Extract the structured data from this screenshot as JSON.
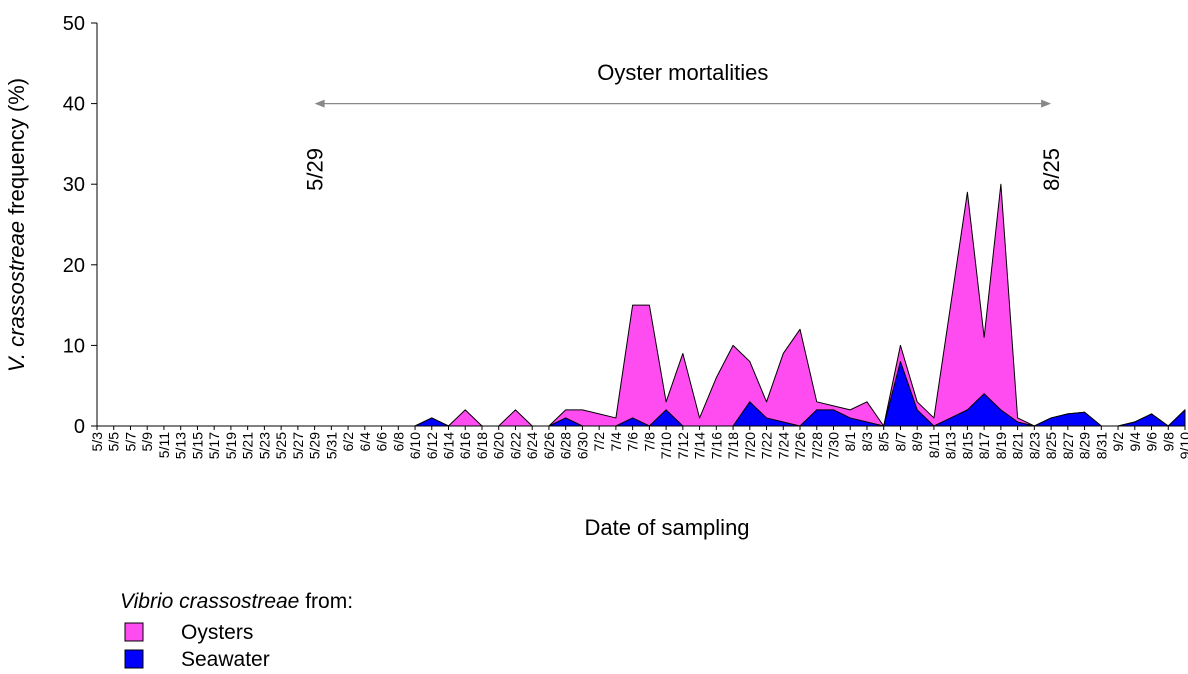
{
  "chart_data": {
    "type": "area",
    "y_label": {
      "italic": "V. crassostreae",
      "text": " frequency (%)"
    },
    "x_label": "Date of sampling",
    "categories": [
      "5/3",
      "5/5",
      "5/7",
      "5/9",
      "5/11",
      "5/13",
      "5/15",
      "5/17",
      "5/19",
      "5/21",
      "5/23",
      "5/25",
      "5/27",
      "5/29",
      "5/31",
      "6/2",
      "6/4",
      "6/6",
      "6/8",
      "6/10",
      "6/12",
      "6/14",
      "6/16",
      "6/18",
      "6/20",
      "6/22",
      "6/24",
      "6/26",
      "6/28",
      "6/30",
      "7/2",
      "7/4",
      "7/6",
      "7/8",
      "7/10",
      "7/12",
      "7/14",
      "7/16",
      "7/18",
      "7/20",
      "7/22",
      "7/24",
      "7/26",
      "7/28",
      "7/30",
      "8/1",
      "8/3",
      "8/5",
      "8/7",
      "8/9",
      "8/11",
      "8/13",
      "8/15",
      "8/17",
      "8/19",
      "8/21",
      "8/23",
      "8/25",
      "8/27",
      "8/29",
      "8/31",
      "9/2",
      "9/4",
      "9/6",
      "9/8",
      "9/10"
    ],
    "series": [
      {
        "name": "Oysters",
        "color": "#ff4cf0",
        "values": [
          0,
          0,
          0,
          0,
          0,
          0,
          0,
          0,
          0,
          0,
          0,
          0,
          0,
          0,
          0,
          0,
          0,
          0,
          0,
          0,
          1,
          0,
          2,
          0,
          0,
          2,
          0,
          0,
          2,
          2,
          1.5,
          1,
          15,
          15,
          3,
          9,
          1,
          6,
          10,
          8,
          3,
          9,
          12,
          3,
          2.5,
          2,
          3,
          0,
          10,
          3,
          1,
          15,
          29,
          11,
          30,
          1,
          0,
          1,
          1.5,
          1.7,
          0,
          0,
          0.5,
          1.5,
          0,
          2
        ]
      },
      {
        "name": "Seawater",
        "color": "#0000ff",
        "values": [
          0,
          0,
          0,
          0,
          0,
          0,
          0,
          0,
          0,
          0,
          0,
          0,
          0,
          0,
          0,
          0,
          0,
          0,
          0,
          0,
          1,
          0,
          0,
          0,
          0,
          0,
          0,
          0,
          1,
          0,
          0,
          0,
          1,
          0,
          2,
          0,
          0,
          0,
          0,
          3,
          1,
          0.5,
          0,
          2,
          2,
          1,
          0.5,
          0,
          8,
          2,
          0,
          1,
          2,
          4,
          2,
          0.5,
          0,
          1,
          1.5,
          1.7,
          0,
          0,
          0.5,
          1.5,
          0,
          2
        ]
      }
    ],
    "ylim": [
      0,
      50
    ],
    "yticks": [
      0,
      10,
      20,
      30,
      40,
      50
    ],
    "annotation": {
      "label": "Oyster mortalities",
      "start": "5/29",
      "end": "8/25",
      "y": 40
    },
    "legend": {
      "title": {
        "italic": "Vibrio crassostreae",
        "text": " from:"
      },
      "position": "bottom-left"
    }
  }
}
